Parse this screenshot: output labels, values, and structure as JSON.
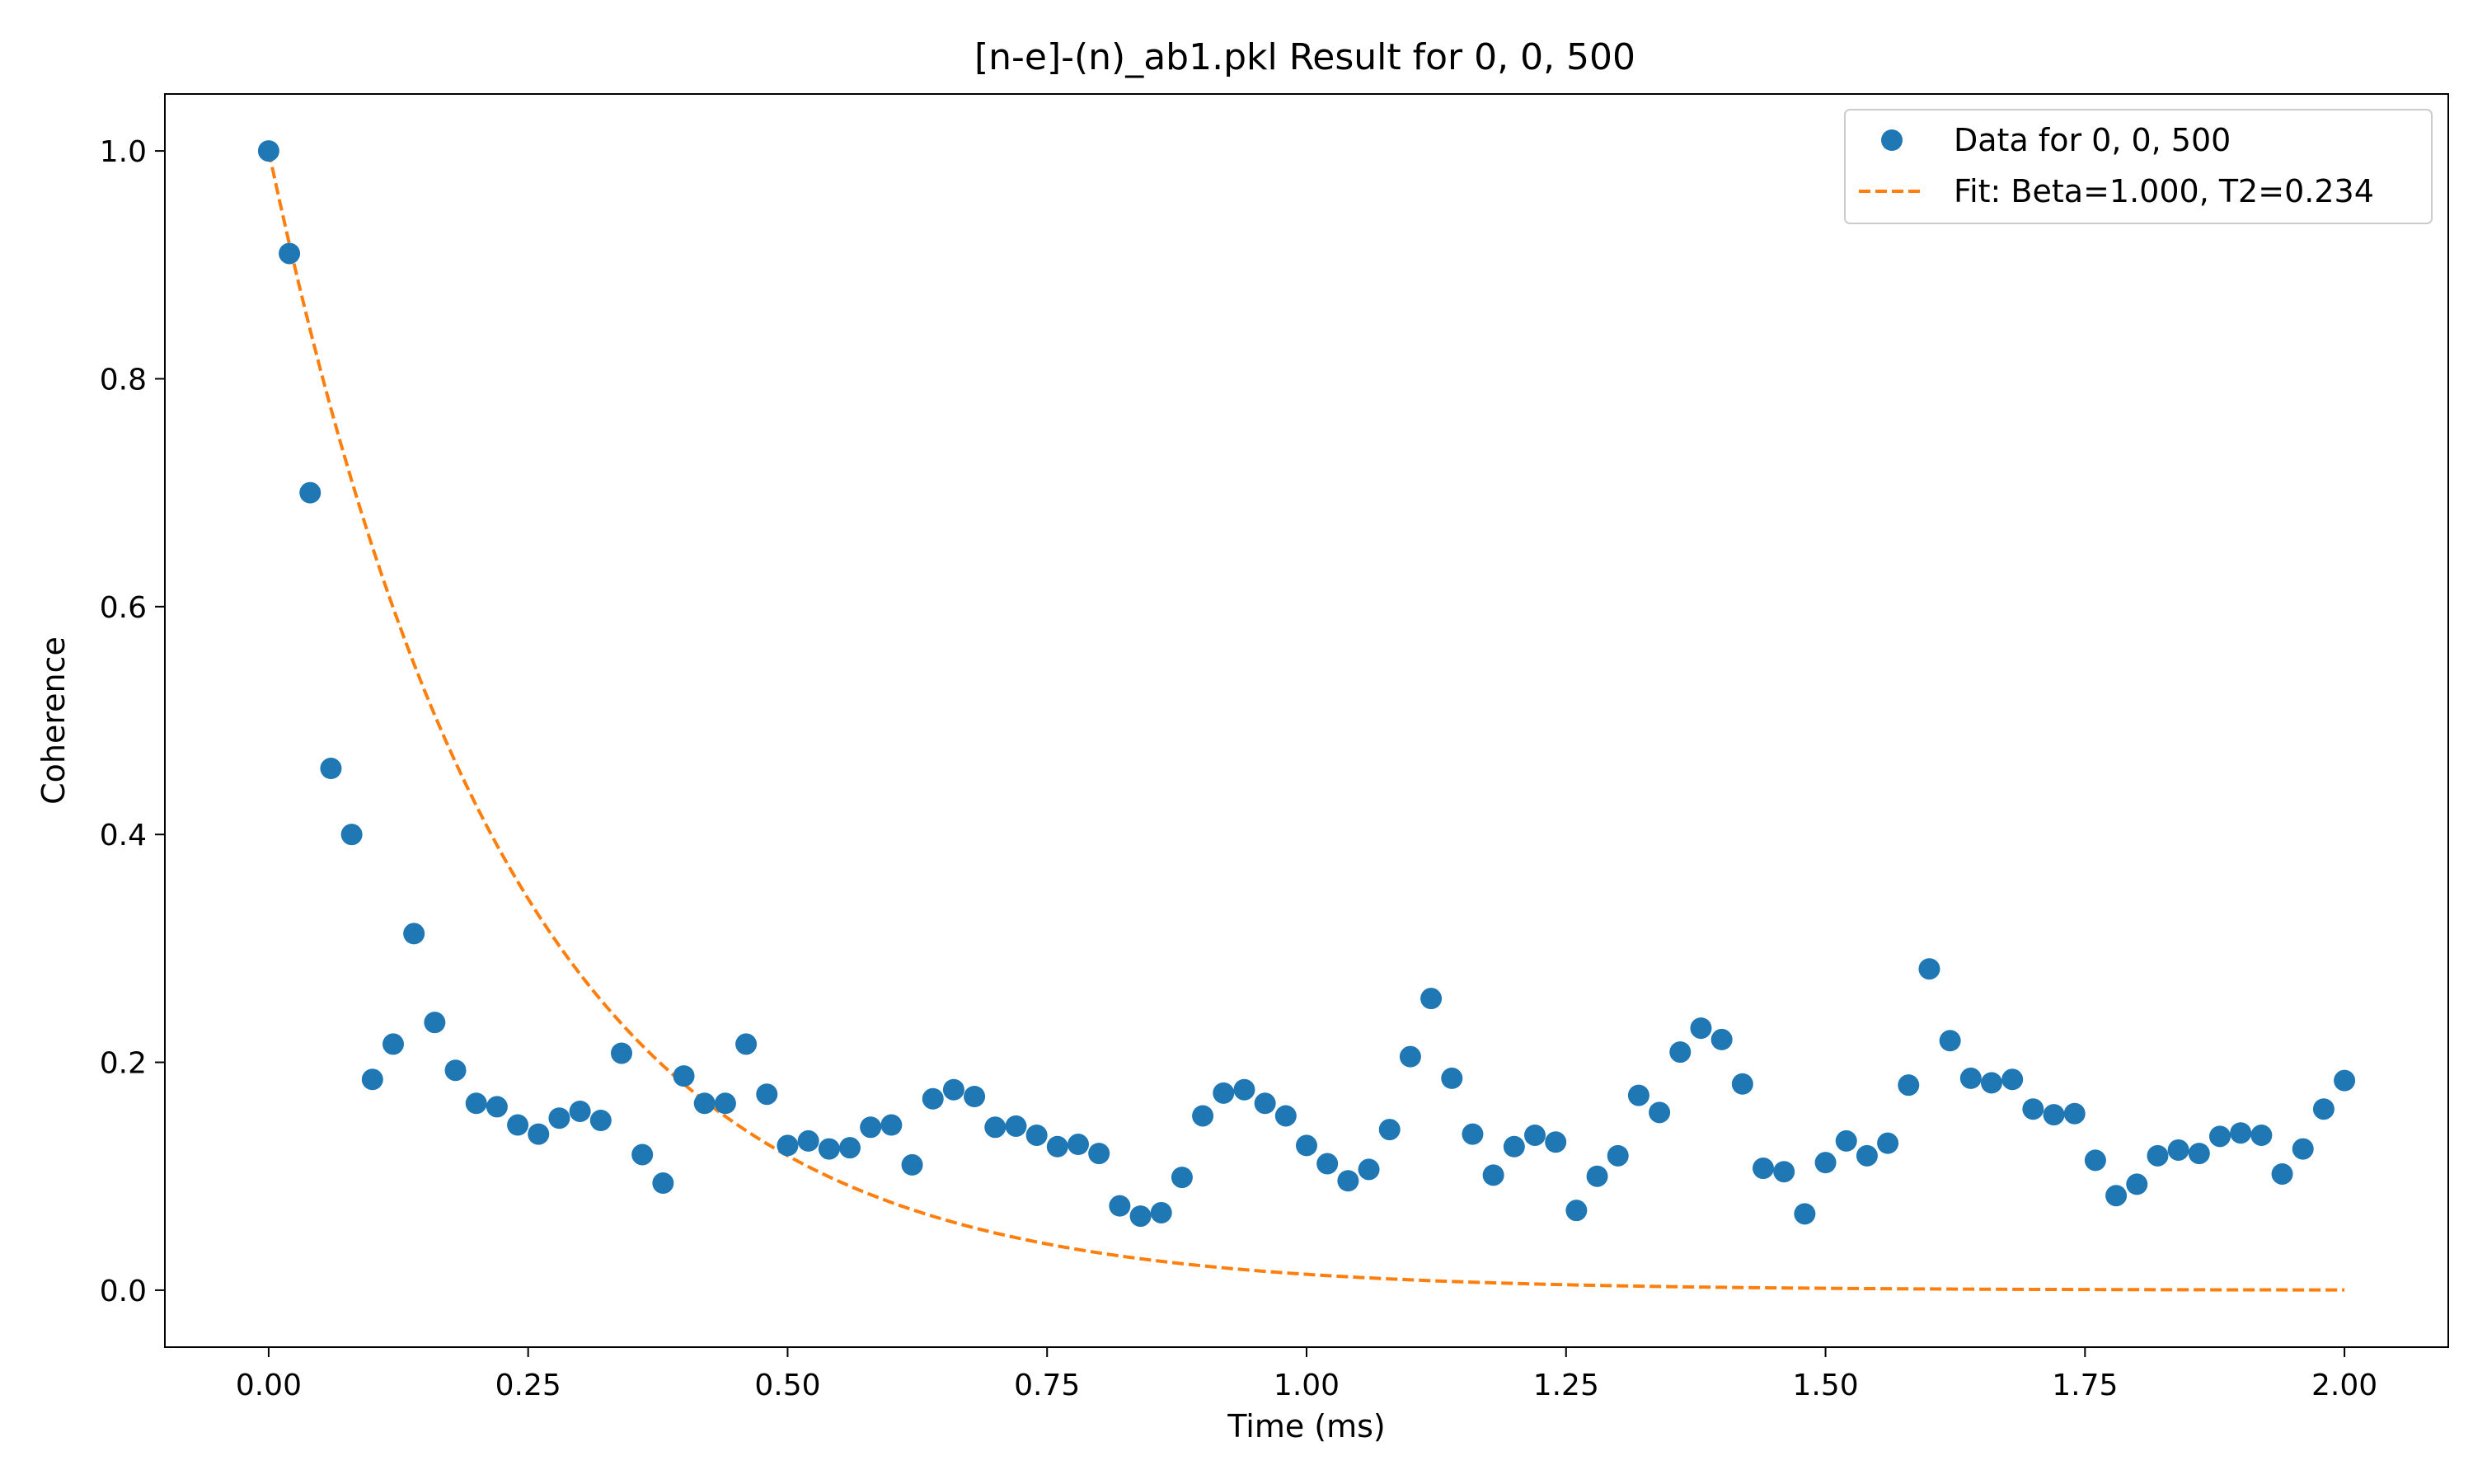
{
  "chart_data": {
    "type": "scatter",
    "title": "[n-e]-(n)_ab1.pkl Result for 0, 0, 500",
    "xlabel": "Time (ms)",
    "ylabel": "Coherence",
    "xlim": [
      -0.1,
      2.1
    ],
    "ylim": [
      -0.05,
      1.05
    ],
    "xticks": [
      0.0,
      0.25,
      0.5,
      0.75,
      1.0,
      1.25,
      1.5,
      1.75,
      2.0
    ],
    "xtick_labels": [
      "0.00",
      "0.25",
      "0.50",
      "0.75",
      "1.00",
      "1.25",
      "1.50",
      "1.75",
      "2.00"
    ],
    "yticks": [
      0.0,
      0.2,
      0.4,
      0.6,
      0.8,
      1.0
    ],
    "ytick_labels": [
      "0.0",
      "0.2",
      "0.4",
      "0.6",
      "0.8",
      "1.0"
    ],
    "grid": false,
    "legend_position": "top-right",
    "series": [
      {
        "name": "Data for 0, 0, 500",
        "kind": "scatter",
        "color": "#1f77b4",
        "x": [
          0.0,
          0.02,
          0.04,
          0.06,
          0.08,
          0.1,
          0.12,
          0.14,
          0.16,
          0.18,
          0.2,
          0.22,
          0.24,
          0.26,
          0.28,
          0.3,
          0.32,
          0.34,
          0.36,
          0.38,
          0.4,
          0.42,
          0.44,
          0.46,
          0.48,
          0.5,
          0.52,
          0.54,
          0.56,
          0.58,
          0.6,
          0.62,
          0.64,
          0.66,
          0.68,
          0.7,
          0.72,
          0.74,
          0.76,
          0.78,
          0.8,
          0.82,
          0.84,
          0.86,
          0.88,
          0.9,
          0.92,
          0.94,
          0.96,
          0.98,
          1.0,
          1.02,
          1.04,
          1.06,
          1.08,
          1.1,
          1.12,
          1.14,
          1.16,
          1.18,
          1.2,
          1.22,
          1.24,
          1.26,
          1.28,
          1.3,
          1.32,
          1.34,
          1.36,
          1.38,
          1.4,
          1.42,
          1.44,
          1.46,
          1.48,
          1.5,
          1.52,
          1.54,
          1.56,
          1.58,
          1.6,
          1.62,
          1.64,
          1.66,
          1.68,
          1.7,
          1.72,
          1.74,
          1.76,
          1.78,
          1.8,
          1.82,
          1.84,
          1.86,
          1.88,
          1.9,
          1.92,
          1.94,
          1.96,
          1.98,
          2.0
        ],
        "y": [
          1.0,
          0.91,
          0.7,
          0.458,
          0.4,
          0.185,
          0.216,
          0.313,
          0.235,
          0.193,
          0.164,
          0.161,
          0.145,
          0.137,
          0.151,
          0.157,
          0.149,
          0.208,
          0.119,
          0.094,
          0.188,
          0.164,
          0.164,
          0.216,
          0.172,
          0.127,
          0.131,
          0.124,
          0.125,
          0.143,
          0.145,
          0.11,
          0.168,
          0.176,
          0.17,
          0.143,
          0.144,
          0.136,
          0.126,
          0.128,
          0.12,
          0.074,
          0.065,
          0.068,
          0.099,
          0.153,
          0.173,
          0.176,
          0.164,
          0.153,
          0.127,
          0.111,
          0.096,
          0.106,
          0.141,
          0.205,
          0.256,
          0.186,
          0.137,
          0.101,
          0.126,
          0.136,
          0.13,
          0.07,
          0.1,
          0.118,
          0.171,
          0.156,
          0.209,
          0.23,
          0.22,
          0.181,
          0.107,
          0.104,
          0.067,
          0.112,
          0.131,
          0.118,
          0.129,
          0.18,
          0.282,
          0.219,
          0.186,
          0.182,
          0.185,
          0.159,
          0.154,
          0.155,
          0.114,
          0.083,
          0.093,
          0.118,
          0.123,
          0.12,
          0.135,
          0.138,
          0.136,
          0.102,
          0.124,
          0.159,
          0.184
        ]
      },
      {
        "name": "Fit: Beta=1.000, T2=0.234",
        "kind": "line",
        "style": "dashed",
        "color": "#ff7f0e",
        "function": "exp(-(t/T2)^Beta)",
        "beta": 1.0,
        "t2": 0.234,
        "x_range": [
          0.0,
          2.0
        ]
      }
    ]
  }
}
